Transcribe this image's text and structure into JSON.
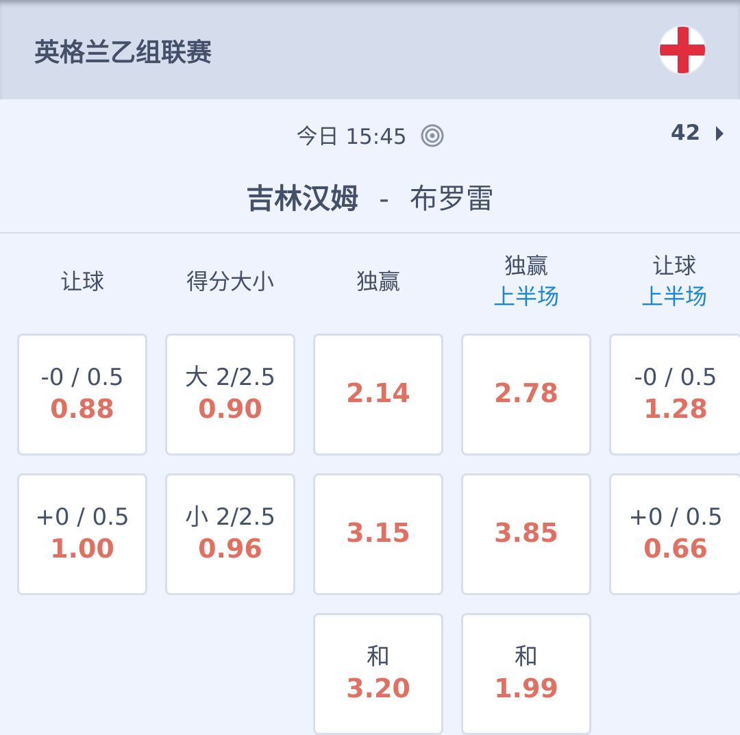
{
  "header": {
    "league": "英格兰乙组联赛",
    "flag_icon": "england-flag-icon"
  },
  "match": {
    "time": "今日 15:45",
    "more_count": "42",
    "home": "吉林汉姆",
    "separator": "-",
    "away": "布罗雷"
  },
  "colors": {
    "odds": "#e07062",
    "accent_blue": "#1a86d6"
  },
  "columns": [
    {
      "title": "让球",
      "sub": ""
    },
    {
      "title": "得分大小",
      "sub": ""
    },
    {
      "title": "独赢",
      "sub": ""
    },
    {
      "title": "独赢",
      "sub": "上半场"
    },
    {
      "title": "让球",
      "sub": "上半场"
    }
  ],
  "rows": [
    [
      {
        "line": "-0 / 0.5",
        "odds": "0.88"
      },
      {
        "line": "大 2/2.5",
        "odds": "0.90"
      },
      {
        "line": "",
        "odds": "2.14"
      },
      {
        "line": "",
        "odds": "2.78"
      },
      {
        "line": "-0 / 0.5",
        "odds": "1.28"
      }
    ],
    [
      {
        "line": "+0 / 0.5",
        "odds": "1.00"
      },
      {
        "line": "小 2/2.5",
        "odds": "0.96"
      },
      {
        "line": "",
        "odds": "3.15"
      },
      {
        "line": "",
        "odds": "3.85"
      },
      {
        "line": "+0 / 0.5",
        "odds": "0.66"
      }
    ],
    [
      null,
      null,
      {
        "line": "和",
        "odds": "3.20"
      },
      {
        "line": "和",
        "odds": "1.99"
      },
      null
    ]
  ]
}
